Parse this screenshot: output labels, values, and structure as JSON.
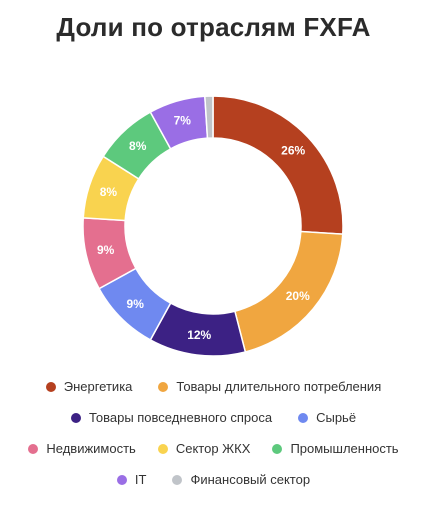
{
  "title": "Доли по отраслям FXFA",
  "chart_data": {
    "type": "pie",
    "title": "Доли по отраслям FXFA",
    "donut": true,
    "legend_position": "bottom",
    "categories": [
      "Энергетика",
      "Товары длительного потребления",
      "Товары повседневного спроса",
      "Сырьё",
      "Недвижимость",
      "Сектор ЖКХ",
      "Промышленность",
      "IT",
      "Финансовый сектор"
    ],
    "values": [
      26,
      20,
      12,
      9,
      9,
      8,
      8,
      7,
      1
    ],
    "labels": [
      "26%",
      "20%",
      "12%",
      "9%",
      "9%",
      "8%",
      "8%",
      "7%",
      ""
    ],
    "colors": [
      "#b5401f",
      "#f0a640",
      "#3c2184",
      "#6f89f0",
      "#e46f8f",
      "#f9d34f",
      "#5dc97d",
      "#9a6ee5",
      "#c0c4c9"
    ]
  }
}
